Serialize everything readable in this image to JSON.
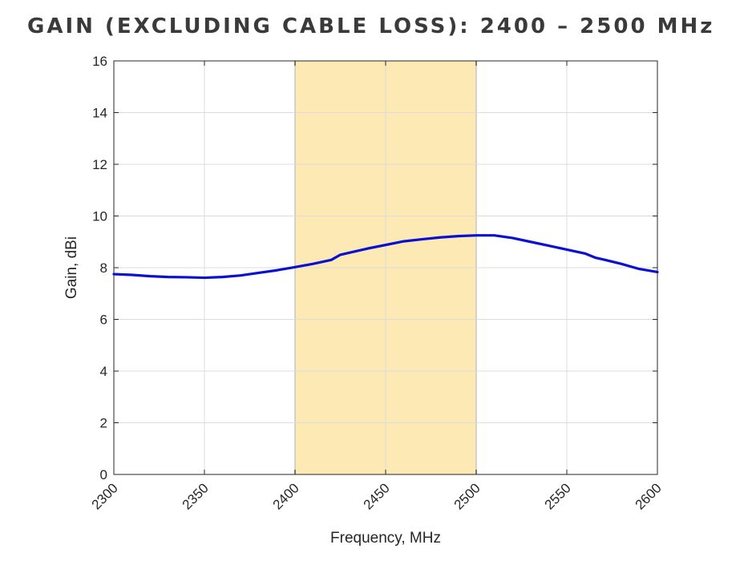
{
  "chart_data": {
    "type": "line",
    "title": "GAIN (EXCLUDING CABLE LOSS): 2400 – 2500 MHz",
    "xlabel": "Frequency, MHz",
    "ylabel": "Gain, dBi",
    "xlim": [
      2300,
      2600
    ],
    "ylim": [
      0,
      16
    ],
    "xticks": [
      "2300",
      "2350",
      "2400",
      "2450",
      "2500",
      "2550",
      "2600"
    ],
    "yticks": [
      "0",
      "2",
      "4",
      "6",
      "8",
      "10",
      "12",
      "14",
      "16"
    ],
    "grid": true,
    "highlight_band": [
      2400,
      2500
    ],
    "colors": {
      "line": "#0a10d2",
      "band": "#fde9b4",
      "band_edge": "#1a1a1a"
    },
    "series": [
      {
        "x": [
          2300,
          2310,
          2320,
          2330,
          2340,
          2350,
          2360,
          2370,
          2380,
          2390,
          2400,
          2410,
          2420,
          2425,
          2430,
          2440,
          2450,
          2460,
          2470,
          2480,
          2490,
          2500,
          2510,
          2520,
          2530,
          2540,
          2550,
          2560,
          2566,
          2570,
          2580,
          2590,
          2600
        ],
        "y": [
          7.75,
          7.72,
          7.67,
          7.64,
          7.63,
          7.61,
          7.64,
          7.7,
          7.8,
          7.9,
          8.02,
          8.15,
          8.3,
          8.5,
          8.58,
          8.74,
          8.88,
          9.02,
          9.1,
          9.17,
          9.22,
          9.25,
          9.25,
          9.15,
          9.0,
          8.85,
          8.7,
          8.55,
          8.38,
          8.32,
          8.15,
          7.95,
          7.83
        ]
      }
    ]
  }
}
